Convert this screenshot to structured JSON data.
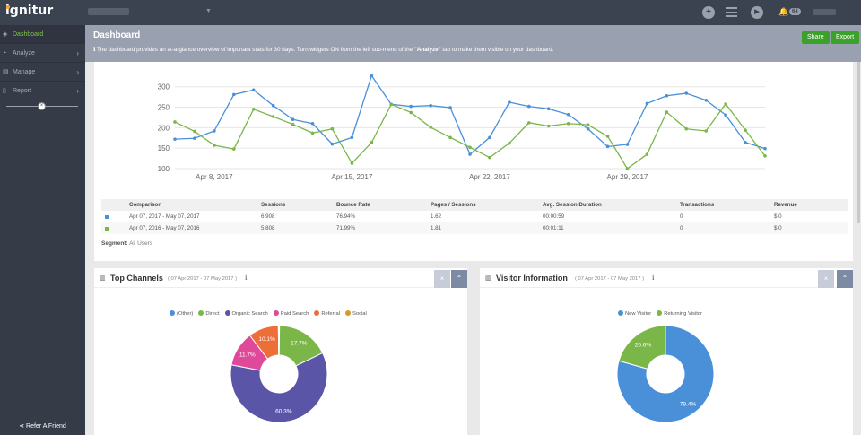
{
  "topbar": {
    "logo": "ignitur",
    "notifications": "64"
  },
  "sidebar": {
    "items": [
      {
        "label": "Dashboard",
        "icon": "dashboard-icon",
        "active": true
      },
      {
        "label": "Analyze",
        "icon": "gauge-icon"
      },
      {
        "label": "Manage",
        "icon": "list-icon"
      },
      {
        "label": "Report",
        "icon": "document-icon"
      }
    ],
    "refer_label": "Refer A Friend"
  },
  "header": {
    "title": "Dashboard",
    "description_pre": "The dashboard provides an at-a-glance overview of important stats for 30 days. Turn widgets ON from the left sub-menu of the ",
    "description_em": "\"Analyze\"",
    "description_post": " tab to make them visible on your dashboard.",
    "share_label": "Share",
    "export_label": "Export"
  },
  "colors": {
    "current": "#4a90d9",
    "previous": "#7ab648",
    "accent_green": "#3ca12b"
  },
  "chart_data": {
    "type": "line",
    "x_tick_labels": [
      "Apr 8, 2017",
      "Apr 15, 2017",
      "Apr 22, 2017",
      "Apr 29, 2017"
    ],
    "x_tick_indices": [
      2,
      9,
      16,
      23
    ],
    "ylim": [
      100,
      330
    ],
    "y_ticks": [
      100,
      150,
      200,
      250,
      300
    ],
    "series": [
      {
        "values": [
          172,
          174,
          192,
          281,
          292,
          254,
          220,
          210,
          160,
          176,
          327,
          257,
          252,
          254,
          249,
          135,
          176,
          262,
          252,
          246,
          232,
          197,
          154,
          159,
          259,
          278,
          284,
          267,
          231,
          164,
          149
        ]
      },
      {
        "values": [
          214,
          191,
          157,
          148,
          245,
          227,
          208,
          187,
          197,
          113,
          164,
          257,
          237,
          201,
          176,
          152,
          127,
          162,
          212,
          204,
          210,
          207,
          179,
          100,
          135,
          238,
          197,
          192,
          258,
          194,
          131
        ]
      }
    ]
  },
  "summary": {
    "headers": [
      "Comparison",
      "Sessions",
      "Bounce Rate",
      "Pages / Sessions",
      "Avg. Session Duration",
      "Transactions",
      "Revenue"
    ],
    "rows": [
      [
        "Apr 07, 2017 - May 07, 2017",
        "6,908",
        "76.94%",
        "1.62",
        "00:00:59",
        "0",
        "$ 0"
      ],
      [
        "Apr 07, 2016 - May 07, 2016",
        "5,808",
        "71.99%",
        "1.81",
        "00:01:11",
        "0",
        "$ 0"
      ]
    ],
    "segment_label": "Segment:",
    "segment_value": "All Users"
  },
  "top_channels": {
    "title": "Top Channels",
    "date": "( 07 Apr 2017 - 07 May 2017 )",
    "chart_data": {
      "type": "pie",
      "labels": [
        "(Other)",
        "Direct",
        "Organic Search",
        "Paid Search",
        "Referral",
        "Social"
      ],
      "values": [
        0.2,
        17.7,
        60.3,
        11.7,
        10.1,
        0.2
      ],
      "value_labels": [
        "",
        "17.7%",
        "60.3%",
        "11.7%",
        "10.1%",
        ""
      ],
      "colors": [
        "#4a90d9",
        "#7ab648",
        "#5b55a8",
        "#e0499a",
        "#ee6e3a",
        "#d49a2a"
      ]
    }
  },
  "visitor_info": {
    "title": "Visitor Information",
    "date": "( 07 Apr 2017 - 07 May 2017 )",
    "chart_data": {
      "type": "pie",
      "labels": [
        "New Visitor",
        "Returning Visitor"
      ],
      "values": [
        79.4,
        20.6
      ],
      "value_labels": [
        "79.4%",
        "20.6%"
      ],
      "colors": [
        "#4a90d9",
        "#7ab648"
      ]
    }
  }
}
